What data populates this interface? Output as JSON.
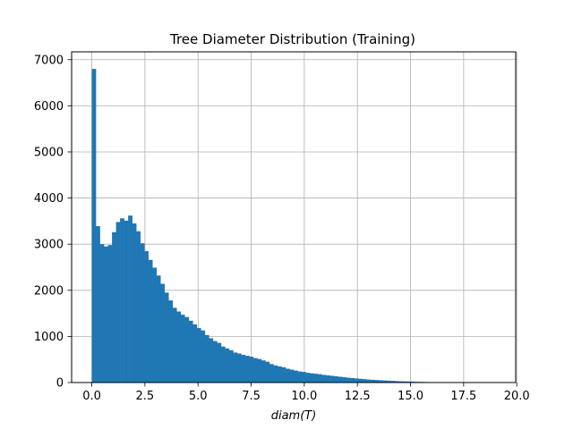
{
  "chart_data": {
    "type": "bar",
    "title": "Tree Diameter Distribution (Training)",
    "xlabel": "diam(T)",
    "ylabel": "",
    "xlim": [
      -0.95,
      19.95
    ],
    "ylim": [
      0,
      7170
    ],
    "xticks": [
      0.0,
      2.5,
      5.0,
      7.5,
      10.0,
      12.5,
      15.0,
      17.5,
      20.0
    ],
    "xtick_labels": [
      "0.0",
      "2.5",
      "5.0",
      "7.5",
      "10.0",
      "12.5",
      "15.0",
      "17.5",
      "20.0"
    ],
    "yticks": [
      0,
      1000,
      2000,
      3000,
      4000,
      5000,
      6000,
      7000
    ],
    "ytick_labels": [
      "0",
      "1000",
      "2000",
      "3000",
      "4000",
      "5000",
      "6000",
      "7000"
    ],
    "grid": true,
    "bar_color": "#1f77b4",
    "bin_start": 0,
    "bin_width": 0.19,
    "values": [
      6800,
      3390,
      3000,
      2950,
      2980,
      3260,
      3480,
      3560,
      3510,
      3620,
      3450,
      3280,
      3020,
      2850,
      2660,
      2490,
      2320,
      2140,
      1950,
      1780,
      1620,
      1540,
      1470,
      1420,
      1340,
      1260,
      1180,
      1130,
      1030,
      960,
      900,
      860,
      780,
      740,
      700,
      650,
      630,
      600,
      580,
      560,
      530,
      510,
      480,
      450,
      400,
      370,
      350,
      330,
      300,
      280,
      260,
      240,
      230,
      210,
      200,
      190,
      180,
      165,
      155,
      145,
      135,
      125,
      115,
      105,
      98,
      90,
      82,
      74,
      66,
      60,
      55,
      50,
      45,
      40,
      36,
      32,
      28,
      25,
      22,
      19,
      16,
      14,
      12,
      10,
      8,
      7,
      6,
      5,
      4,
      3,
      3,
      2,
      2,
      1,
      1,
      1,
      1,
      1,
      1,
      1
    ]
  }
}
